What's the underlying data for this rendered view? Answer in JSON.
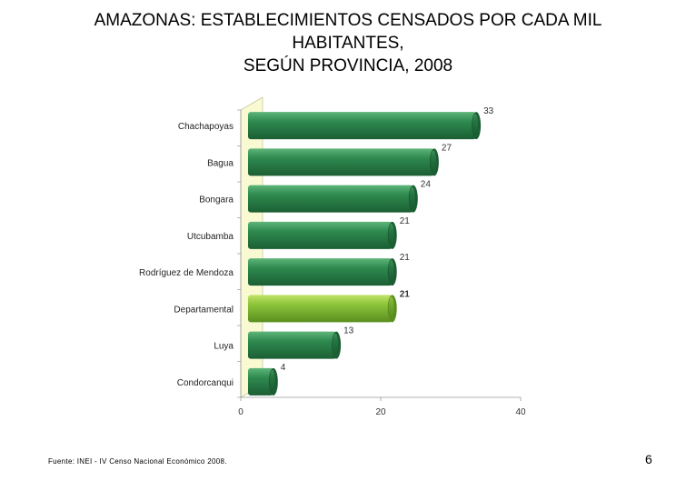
{
  "title": {
    "line1": "AMAZONAS: ESTABLECIMIENTOS CENSADOS POR CADA MIL",
    "line2": "HABITANTES,",
    "line3": "SEGÚN PROVINCIA, 2008"
  },
  "footnote": "Fuente: INEI - IV Censo Nacional Económico 2008.",
  "page_number": "6",
  "colors": {
    "bar": "#2e8a4f",
    "bar_dark": "#1b5e33",
    "bar_highlight": "#8cc43a",
    "bar_highlight_dark": "#5a8f1f",
    "wall": "#fafad2"
  },
  "chart_data": {
    "type": "bar",
    "orientation": "horizontal",
    "title": "AMAZONAS: ESTABLECIMIENTOS CENSADOS POR CADA MIL HABITANTES, SEGÚN PROVINCIA, 2008",
    "categories": [
      "Chachapoyas",
      "Bagua",
      "Bongara",
      "Utcubamba",
      "Rodríguez de Mendoza",
      "Departamental",
      "Luya",
      "Condorcanqui"
    ],
    "values": [
      33,
      27,
      24,
      21,
      21,
      21,
      13,
      4
    ],
    "highlight": "Departamental",
    "xlim": [
      0,
      40
    ],
    "xticks": [
      0,
      20,
      40
    ],
    "xlabel": "",
    "ylabel": ""
  }
}
